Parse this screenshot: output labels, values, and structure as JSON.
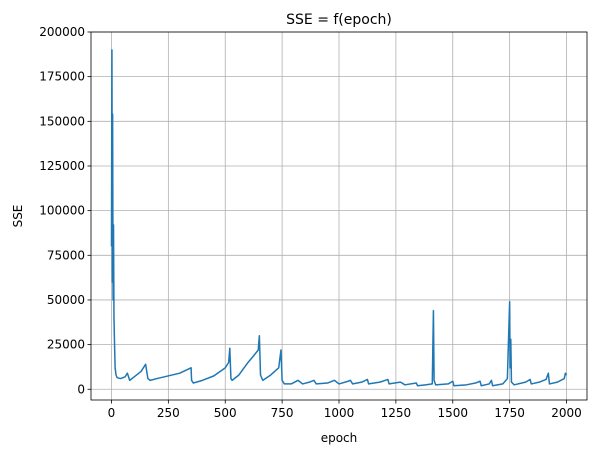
{
  "chart_data": {
    "type": "line",
    "title": "SSE = f(epoch)",
    "xlabel": "epoch",
    "ylabel": "SSE",
    "xlim": [
      -90,
      2090
    ],
    "ylim": [
      -6000,
      200000
    ],
    "xticks": [
      0,
      250,
      500,
      750,
      1000,
      1250,
      1500,
      1750,
      2000
    ],
    "yticks": [
      0,
      25000,
      50000,
      75000,
      100000,
      125000,
      150000,
      175000,
      200000
    ],
    "grid": true,
    "color": "#1f77b4",
    "series": [
      {
        "points": [
          [
            0,
            80000
          ],
          [
            2,
            190000
          ],
          [
            4,
            60000
          ],
          [
            5,
            154000
          ],
          [
            7,
            50000
          ],
          [
            9,
            92000
          ],
          [
            11,
            40000
          ],
          [
            13,
            28000
          ],
          [
            16,
            12000
          ],
          [
            20,
            8000
          ],
          [
            25,
            6500
          ],
          [
            40,
            6000
          ],
          [
            60,
            7000
          ],
          [
            70,
            9000
          ],
          [
            80,
            5000
          ],
          [
            100,
            7000
          ],
          [
            130,
            10000
          ],
          [
            150,
            14000
          ],
          [
            160,
            6000
          ],
          [
            170,
            5000
          ],
          [
            200,
            6000
          ],
          [
            300,
            9000
          ],
          [
            350,
            12000
          ],
          [
            352,
            5000
          ],
          [
            360,
            3500
          ],
          [
            400,
            5000
          ],
          [
            450,
            7500
          ],
          [
            500,
            12000
          ],
          [
            515,
            15000
          ],
          [
            520,
            23000
          ],
          [
            525,
            6000
          ],
          [
            530,
            5000
          ],
          [
            560,
            8000
          ],
          [
            600,
            15000
          ],
          [
            620,
            18000
          ],
          [
            645,
            22000
          ],
          [
            650,
            30000
          ],
          [
            655,
            8000
          ],
          [
            665,
            5000
          ],
          [
            700,
            8000
          ],
          [
            735,
            12000
          ],
          [
            745,
            22000
          ],
          [
            750,
            5000
          ],
          [
            760,
            3000
          ],
          [
            790,
            3000
          ],
          [
            820,
            5000
          ],
          [
            840,
            3000
          ],
          [
            870,
            4000
          ],
          [
            890,
            5000
          ],
          [
            900,
            3000
          ],
          [
            950,
            3500
          ],
          [
            980,
            5000
          ],
          [
            1000,
            3000
          ],
          [
            1040,
            4500
          ],
          [
            1050,
            5000
          ],
          [
            1060,
            3000
          ],
          [
            1100,
            4000
          ],
          [
            1125,
            5500
          ],
          [
            1130,
            3000
          ],
          [
            1180,
            4000
          ],
          [
            1215,
            5500
          ],
          [
            1220,
            3000
          ],
          [
            1270,
            4000
          ],
          [
            1290,
            2500
          ],
          [
            1340,
            3500
          ],
          [
            1345,
            2000
          ],
          [
            1380,
            2500
          ],
          [
            1410,
            3000
          ],
          [
            1415,
            44000
          ],
          [
            1418,
            5000
          ],
          [
            1425,
            2500
          ],
          [
            1480,
            3000
          ],
          [
            1500,
            4500
          ],
          [
            1505,
            2000
          ],
          [
            1560,
            2500
          ],
          [
            1600,
            3500
          ],
          [
            1620,
            4500
          ],
          [
            1625,
            2000
          ],
          [
            1660,
            3000
          ],
          [
            1670,
            5000
          ],
          [
            1675,
            2000
          ],
          [
            1720,
            3000
          ],
          [
            1740,
            6000
          ],
          [
            1750,
            49000
          ],
          [
            1752,
            12000
          ],
          [
            1755,
            28000
          ],
          [
            1758,
            4000
          ],
          [
            1770,
            2500
          ],
          [
            1820,
            4000
          ],
          [
            1840,
            5500
          ],
          [
            1845,
            3000
          ],
          [
            1880,
            4000
          ],
          [
            1910,
            5500
          ],
          [
            1920,
            9000
          ],
          [
            1925,
            3000
          ],
          [
            1960,
            4000
          ],
          [
            1990,
            6000
          ],
          [
            1995,
            9000
          ],
          [
            2000,
            8000
          ]
        ]
      }
    ]
  }
}
